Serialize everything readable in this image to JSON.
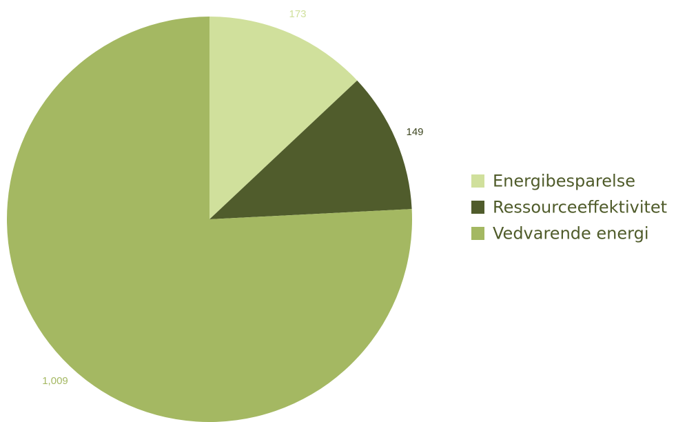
{
  "chart_data": {
    "type": "pie",
    "title": "",
    "legend_position": "right",
    "slices": [
      {
        "name": "Energibesparelse",
        "value": 173,
        "label": "173",
        "color": "#d0e09c"
      },
      {
        "name": "Ressourceeffektivitet",
        "value": 149,
        "label": "149",
        "color": "#505c2c"
      },
      {
        "name": "Vedvarende energi",
        "value": 1009,
        "label": "1,009",
        "color": "#a4b862"
      }
    ]
  }
}
